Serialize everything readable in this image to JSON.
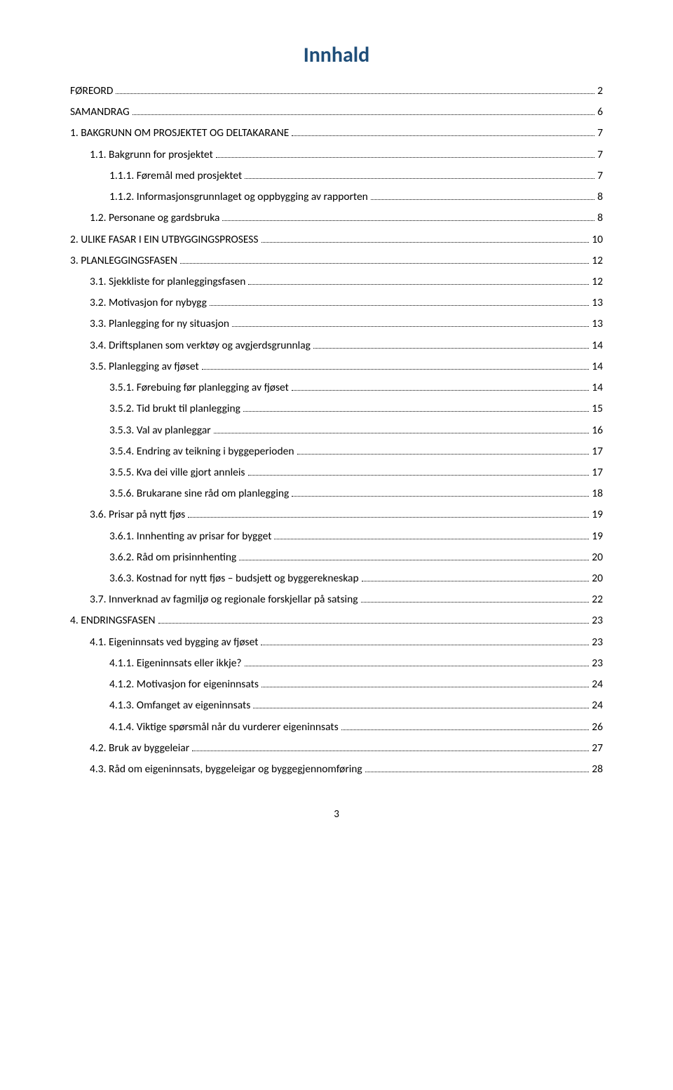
{
  "title": "Innhald",
  "title_color": "#1f4e79",
  "text_color": "#000000",
  "page_number": "3",
  "toc": [
    {
      "label": "FØREORD",
      "page": "2",
      "level": 0
    },
    {
      "label": "SAMANDRAG",
      "page": "6",
      "level": 0
    },
    {
      "label": "1. BAKGRUNN OM PROSJEKTET OG DELTAKARANE",
      "page": "7",
      "level": 0
    },
    {
      "label": "1.1. Bakgrunn for prosjektet",
      "page": "7",
      "level": 1
    },
    {
      "label": "1.1.1. Føremål med prosjektet",
      "page": "7",
      "level": 2
    },
    {
      "label": "1.1.2. Informasjonsgrunnlaget og oppbygging av rapporten",
      "page": "8",
      "level": 2
    },
    {
      "label": "1.2. Personane og gardsbruka",
      "page": "8",
      "level": 1
    },
    {
      "label": "2. ULIKE FASAR I EIN UTBYGGINGSPROSESS",
      "page": "10",
      "level": 0
    },
    {
      "label": "3. PLANLEGGINGSFASEN",
      "page": "12",
      "level": 0
    },
    {
      "label": "3.1. Sjekkliste for planleggingsfasen",
      "page": "12",
      "level": 1
    },
    {
      "label": "3.2. Motivasjon for nybygg",
      "page": "13",
      "level": 1
    },
    {
      "label": "3.3. Planlegging for ny situasjon",
      "page": "13",
      "level": 1
    },
    {
      "label": "3.4. Driftsplanen som verktøy og avgjerdsgrunnlag",
      "page": "14",
      "level": 1
    },
    {
      "label": "3.5. Planlegging av fjøset",
      "page": "14",
      "level": 1
    },
    {
      "label": "3.5.1. Førebuing før planlegging av fjøset",
      "page": "14",
      "level": 2
    },
    {
      "label": "3.5.2. Tid brukt til planlegging",
      "page": "15",
      "level": 2
    },
    {
      "label": "3.5.3. Val av planleggar",
      "page": "16",
      "level": 2
    },
    {
      "label": "3.5.4. Endring av teikning i byggeperioden",
      "page": "17",
      "level": 2
    },
    {
      "label": "3.5.5. Kva dei ville  gjort annleis",
      "page": "17",
      "level": 2
    },
    {
      "label": "3.5.6. Brukarane sine råd om planlegging",
      "page": "18",
      "level": 2
    },
    {
      "label": "3.6. Prisar på nytt fjøs",
      "page": "19",
      "level": 1
    },
    {
      "label": "3.6.1. Innhenting av prisar for bygget",
      "page": "19",
      "level": 2
    },
    {
      "label": "3.6.2. Råd om prisinnhenting",
      "page": "20",
      "level": 2
    },
    {
      "label": "3.6.3. Kostnad for nytt fjøs – budsjett og byggerekneskap",
      "page": "20",
      "level": 2
    },
    {
      "label": "3.7. Innverknad av fagmiljø og regionale forskjellar på satsing",
      "page": "22",
      "level": 1
    },
    {
      "label": "4. ENDRINGSFASEN",
      "page": "23",
      "level": 0
    },
    {
      "label": "4.1. Eigeninnsats ved bygging av fjøset",
      "page": "23",
      "level": 1
    },
    {
      "label": "4.1.1. Eigeninnsats eller ikkje?",
      "page": "23",
      "level": 2
    },
    {
      "label": "4.1.2. Motivasjon for eigeninnsats",
      "page": "24",
      "level": 2
    },
    {
      "label": "4.1.3. Omfanget av eigeninnsats",
      "page": "24",
      "level": 2
    },
    {
      "label": "4.1.4. Viktige spørsmål når du vurderer eigeninnsats",
      "page": "26",
      "level": 2
    },
    {
      "label": "4.2. Bruk av byggeleiar",
      "page": "27",
      "level": 1
    },
    {
      "label": "4.3. Råd om eigeninnsats, byggeleigar og byggegjennomføring",
      "page": "28",
      "level": 1
    }
  ]
}
